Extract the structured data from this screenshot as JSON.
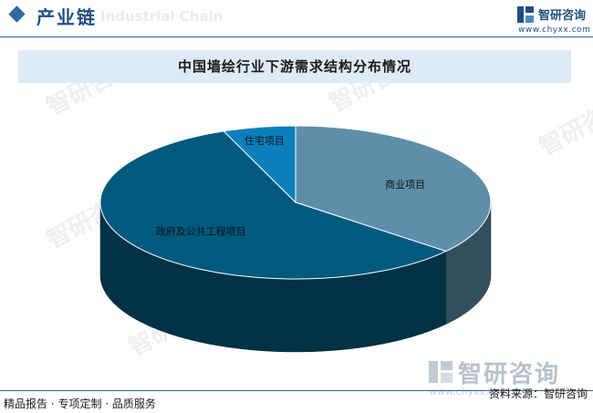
{
  "header": {
    "section_title": "产业链",
    "ghost_text": "Industrial Chain",
    "logo_name": "智研咨询",
    "logo_url": "www.chyxx.com"
  },
  "title": "中国墙绘行业下游需求结构分布情况",
  "chart_data": {
    "type": "pie",
    "style": "3d",
    "title": "中国墙绘行业下游需求结构分布情况",
    "slices": [
      {
        "label": "商业项目",
        "value": 36,
        "color": "#5d8fa8"
      },
      {
        "label": "政府及公共工程项目",
        "value": 58,
        "color": "#005a7e"
      },
      {
        "label": "住宅项目",
        "value": 6,
        "color": "#0a7fbc"
      }
    ]
  },
  "watermark": {
    "text": "智研咨询",
    "footer_brand": "智研咨询",
    "footer_url": "www.chyxx.com"
  },
  "footer": {
    "left": "精品报告 · 专项定制 · 品质服务",
    "source": "资料来源：智研咨询"
  }
}
